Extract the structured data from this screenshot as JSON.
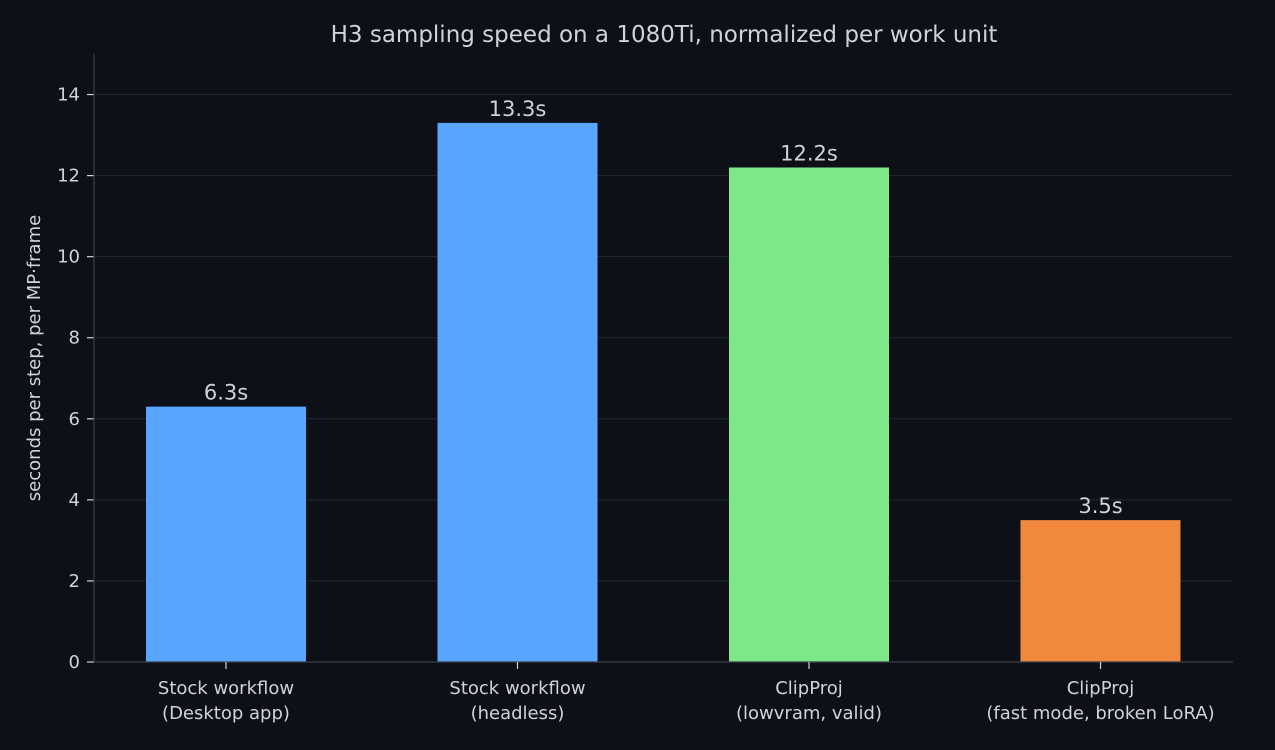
{
  "chart_data": {
    "type": "bar",
    "title": "H3 sampling speed on a 1080Ti, normalized per work unit",
    "xlabel": "",
    "ylabel": "seconds per step, per MP·frame",
    "ylim": [
      0,
      15
    ],
    "yticks": [
      0,
      2,
      4,
      6,
      8,
      10,
      12,
      14
    ],
    "grid": true,
    "categories": [
      [
        "Stock workflow",
        "(Desktop app)"
      ],
      [
        "Stock workflow",
        "(headless)"
      ],
      [
        "ClipProj",
        "(lowvram, valid)"
      ],
      [
        "ClipProj",
        "(fast mode, broken LoRA)"
      ]
    ],
    "values": [
      6.3,
      13.3,
      12.2,
      3.5
    ],
    "value_labels": [
      "6.3s",
      "13.3s",
      "12.2s",
      "3.5s"
    ],
    "bar_colors": [
      "#58a6ff",
      "#58a6ff",
      "#7ee787",
      "#f0883e"
    ]
  }
}
